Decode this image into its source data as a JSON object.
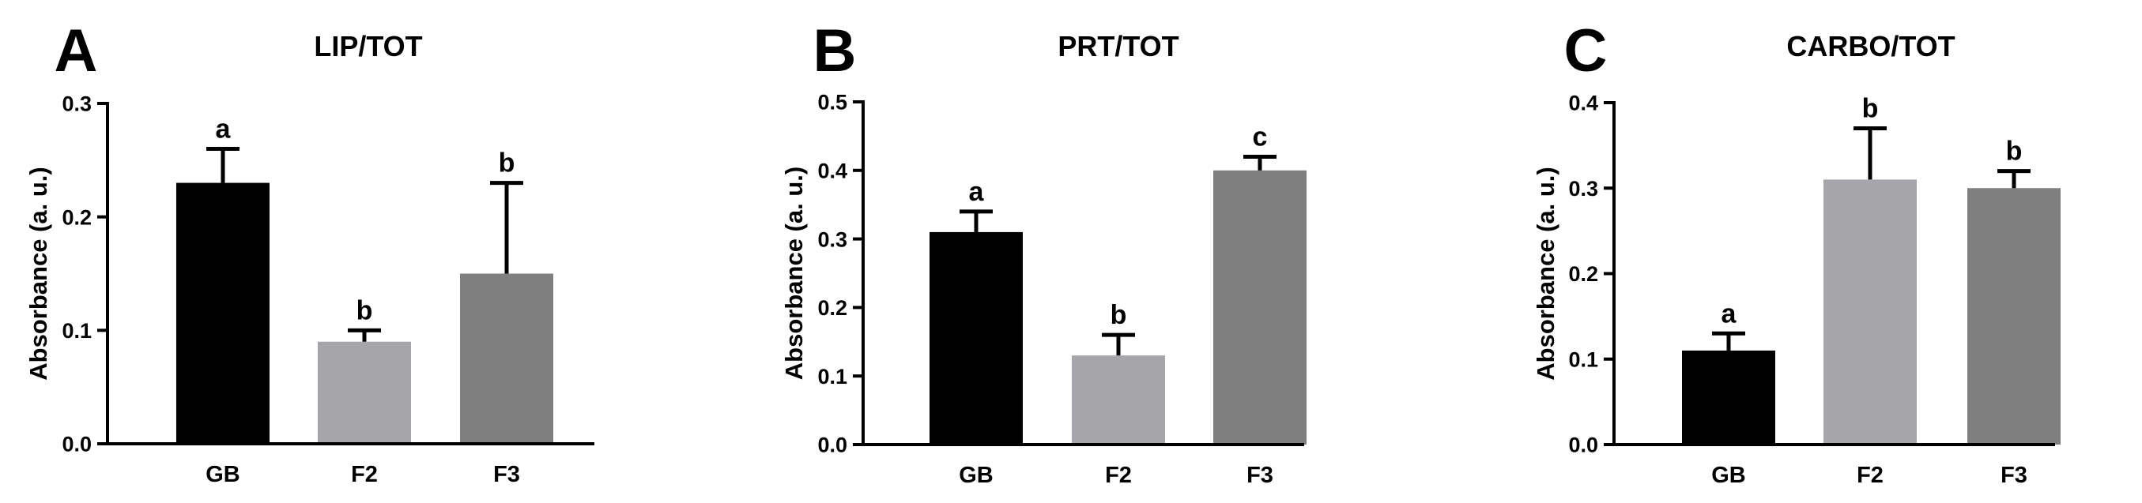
{
  "chart_data": [
    {
      "type": "bar",
      "panel": "A",
      "title": "LIP/TOT",
      "ylabel": "Absorbance (a. u.)",
      "categories": [
        "GB",
        "F2",
        "F3"
      ],
      "values": [
        0.23,
        0.09,
        0.15
      ],
      "errors": [
        0.03,
        0.01,
        0.08
      ],
      "significance": [
        "a",
        "b",
        "b"
      ],
      "colors": [
        "#000000",
        "#a6a6aa",
        "#7f7f7f"
      ],
      "ylim": [
        0,
        0.3
      ],
      "yticks": [
        0.0,
        0.1,
        0.2,
        0.3
      ],
      "ytick_labels": [
        "0.0",
        "0.1",
        "0.2",
        "0.3"
      ]
    },
    {
      "type": "bar",
      "panel": "B",
      "title": "PRT/TOT",
      "ylabel": "Absorbance (a. u.)",
      "categories": [
        "GB",
        "F2",
        "F3"
      ],
      "values": [
        0.31,
        0.13,
        0.4
      ],
      "errors": [
        0.03,
        0.03,
        0.02
      ],
      "significance": [
        "a",
        "b",
        "c"
      ],
      "colors": [
        "#000000",
        "#a6a6aa",
        "#7f7f7f"
      ],
      "ylim": [
        0,
        0.5
      ],
      "yticks": [
        0.0,
        0.1,
        0.2,
        0.3,
        0.4,
        0.5
      ],
      "ytick_labels": [
        "0.0",
        "0.1",
        "0.2",
        "0.3",
        "0.4",
        "0.5"
      ]
    },
    {
      "type": "bar",
      "panel": "C",
      "title": "CARBO/TOT",
      "ylabel": "Absorbance (a. u.)",
      "categories": [
        "GB",
        "F2",
        "F3"
      ],
      "values": [
        0.11,
        0.31,
        0.3
      ],
      "errors": [
        0.02,
        0.06,
        0.02
      ],
      "significance": [
        "a",
        "b",
        "b"
      ],
      "colors": [
        "#000000",
        "#a6a6aa",
        "#7f7f7f"
      ],
      "ylim": [
        0,
        0.4
      ],
      "yticks": [
        0.0,
        0.1,
        0.2,
        0.3,
        0.4
      ],
      "ytick_labels": [
        "0.0",
        "0.1",
        "0.2",
        "0.3",
        "0.4"
      ]
    }
  ]
}
